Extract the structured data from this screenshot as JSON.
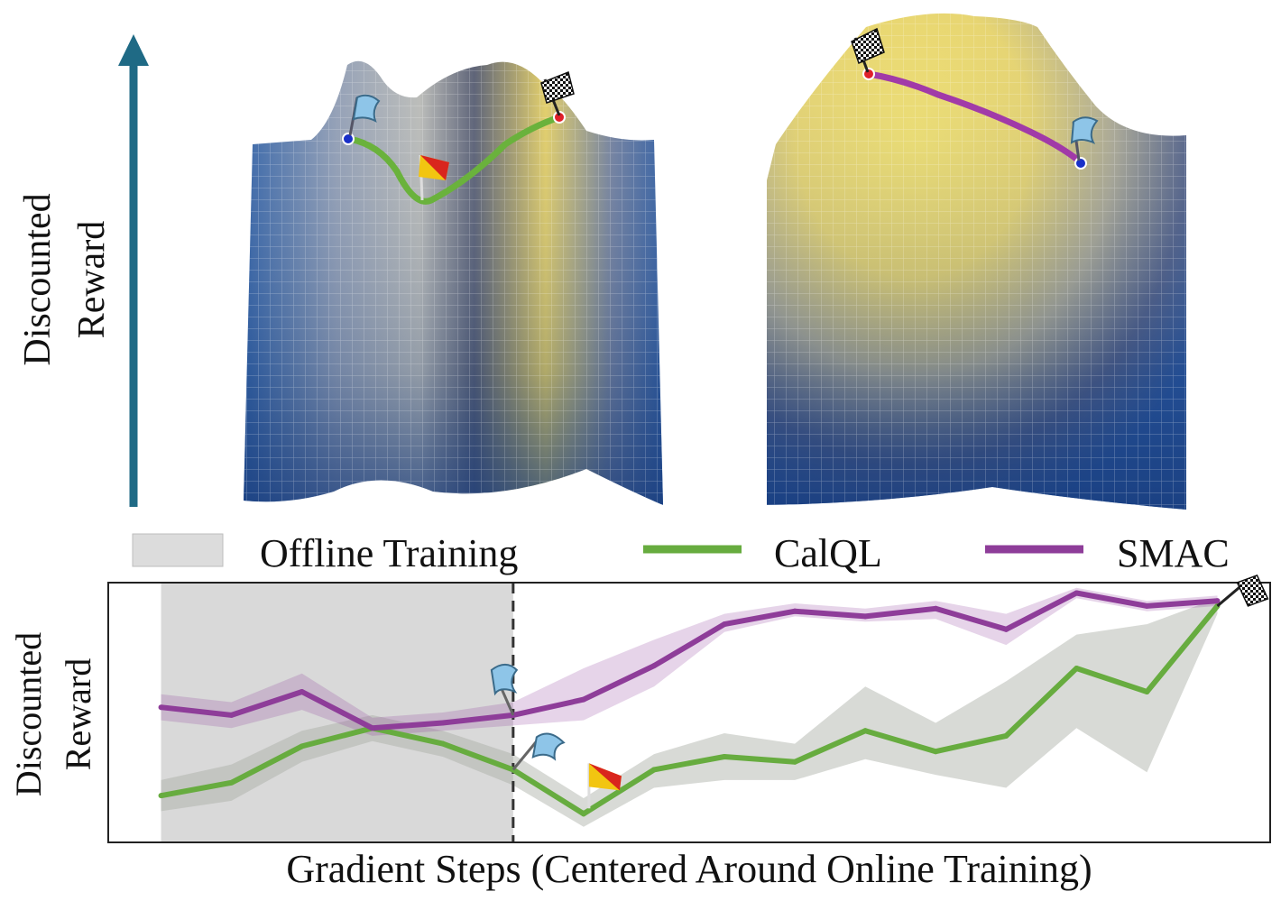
{
  "top_axis": {
    "label_line1": "Discounted",
    "label_line2": "Reward",
    "arrow_color": "#1f6a85"
  },
  "legend": {
    "offline": {
      "label": "Offline Training",
      "color": "#dcdcdc"
    },
    "calql": {
      "label": "CalQL",
      "color": "#67ac3f"
    },
    "smac": {
      "label": "SMAC",
      "color": "#8e3d99"
    }
  },
  "colors": {
    "calql": "#67ac3f",
    "smac": "#8e3d99",
    "band": "#a8aca4",
    "offline_shade": "#d9d9d9",
    "divider": "#333333",
    "surface_low": "#2d5fa8",
    "surface_mid": "#b8b8b4",
    "surface_high": "#e7d05a"
  },
  "icons": {
    "start": "light-blue-flag-icon",
    "dip": "red-yellow-flag-icon",
    "goal": "checkered-flag-icon"
  },
  "chart_data": {
    "type": "line",
    "title": "",
    "xlabel": "Gradient Steps (Centered Around Online Training)",
    "ylabel_line1": "Discounted",
    "ylabel_line2": "Reward",
    "x": [
      -5,
      -4,
      -3,
      -2,
      -1,
      0,
      1,
      2,
      3,
      4,
      5,
      6,
      7,
      8,
      9,
      10
    ],
    "xlim": [
      -5.75,
      10.75
    ],
    "ylim": [
      0,
      1
    ],
    "online_start": 0,
    "offline_region": [
      -5,
      0
    ],
    "series": [
      {
        "name": "CalQL",
        "color": "#67ac3f",
        "values": [
          0.18,
          0.23,
          0.37,
          0.44,
          0.38,
          0.28,
          0.11,
          0.28,
          0.33,
          0.31,
          0.43,
          0.35,
          0.41,
          0.67,
          0.58,
          0.91
        ],
        "lower": [
          0.12,
          0.16,
          0.31,
          0.39,
          0.33,
          0.22,
          0.06,
          0.21,
          0.24,
          0.24,
          0.32,
          0.26,
          0.21,
          0.44,
          0.27,
          0.88
        ],
        "upper": [
          0.24,
          0.3,
          0.43,
          0.49,
          0.43,
          0.34,
          0.17,
          0.34,
          0.42,
          0.38,
          0.6,
          0.46,
          0.62,
          0.8,
          0.84,
          0.94
        ]
      },
      {
        "name": "SMAC",
        "color": "#8e3d99",
        "values": [
          0.52,
          0.49,
          0.58,
          0.44,
          0.46,
          0.49,
          0.55,
          0.68,
          0.84,
          0.89,
          0.87,
          0.9,
          0.82,
          0.96,
          0.91,
          0.93
        ],
        "lower": [
          0.47,
          0.44,
          0.51,
          0.41,
          0.43,
          0.45,
          0.47,
          0.6,
          0.81,
          0.87,
          0.85,
          0.86,
          0.76,
          0.94,
          0.89,
          0.91
        ],
        "upper": [
          0.57,
          0.54,
          0.65,
          0.48,
          0.5,
          0.54,
          0.67,
          0.78,
          0.88,
          0.92,
          0.9,
          0.93,
          0.88,
          0.98,
          0.93,
          0.95
        ]
      }
    ]
  }
}
